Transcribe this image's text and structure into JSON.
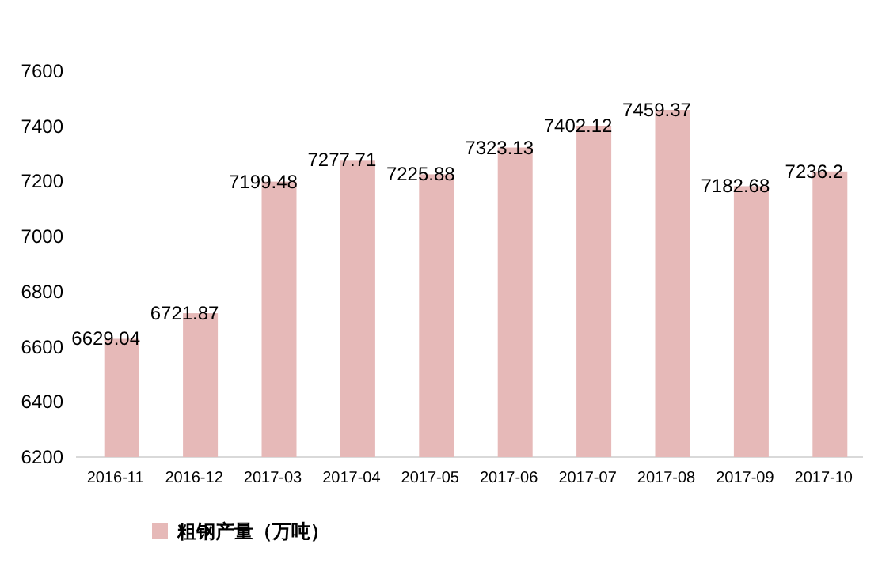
{
  "chart_data": {
    "type": "bar",
    "categories": [
      "2016-11",
      "2016-12",
      "2017-03",
      "2017-04",
      "2017-05",
      "2017-06",
      "2017-07",
      "2017-08",
      "2017-09",
      "2017-10"
    ],
    "series": [
      {
        "name": "粗钢产量（万吨）",
        "color": "#e6b9b8",
        "values": [
          6629.04,
          6721.87,
          7199.48,
          7277.71,
          7225.88,
          7323.13,
          7402.12,
          7459.37,
          7182.68,
          7236.2
        ]
      }
    ],
    "ylim": [
      6200,
      7600
    ],
    "yticks": [
      6200,
      6400,
      6600,
      6800,
      7000,
      7200,
      7400,
      7600
    ],
    "data_labels": true,
    "legend": "bottom"
  }
}
